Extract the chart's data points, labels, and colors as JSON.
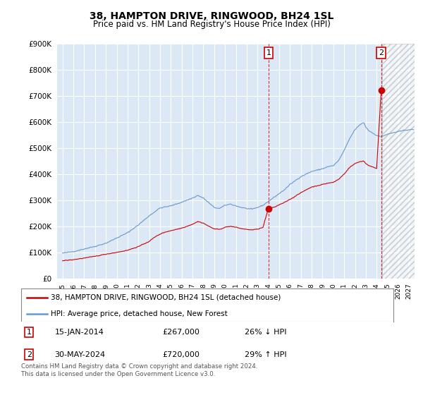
{
  "title": "38, HAMPTON DRIVE, RINGWOOD, BH24 1SL",
  "subtitle": "Price paid vs. HM Land Registry's House Price Index (HPI)",
  "red_label": "38, HAMPTON DRIVE, RINGWOOD, BH24 1SL (detached house)",
  "blue_label": "HPI: Average price, detached house, New Forest",
  "annotation1_date": "15-JAN-2014",
  "annotation1_price": "£267,000",
  "annotation1_pct": "26% ↓ HPI",
  "annotation2_date": "30-MAY-2024",
  "annotation2_price": "£720,000",
  "annotation2_pct": "29% ↑ HPI",
  "footer": "Contains HM Land Registry data © Crown copyright and database right 2024.\nThis data is licensed under the Open Government Licence v3.0.",
  "ylim": [
    0,
    900000
  ],
  "yticks": [
    0,
    100000,
    200000,
    300000,
    400000,
    500000,
    600000,
    700000,
    800000,
    900000
  ],
  "bg_color": "#dce8f5",
  "red_color": "#cc0000",
  "blue_color": "#6699cc",
  "annot1_year": 2014.04,
  "annot1_value": 267000,
  "annot2_year": 2024.42,
  "annot2_value": 720000,
  "hatch_xmin": 2024.5,
  "xmin": 1994.5,
  "xmax": 2027.5
}
